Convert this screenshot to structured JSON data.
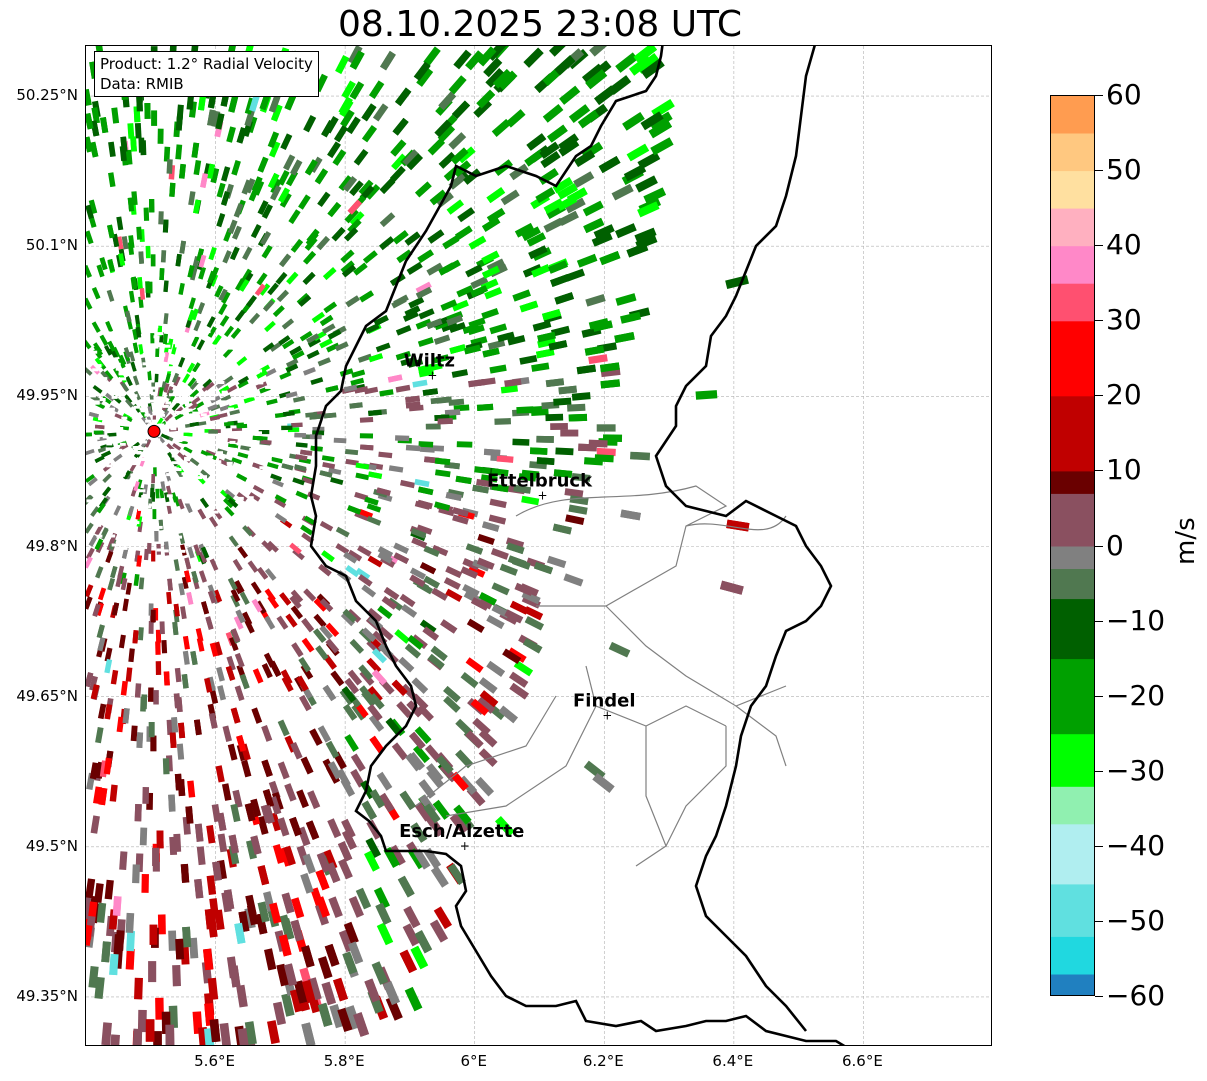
{
  "title": "08.10.2025 23:08 UTC",
  "info_box": {
    "product": "Product: 1.2° Radial Velocity",
    "data": "Data: RMIB"
  },
  "map": {
    "lon_range": [
      5.4,
      6.8
    ],
    "lat_range": [
      49.3,
      50.3
    ],
    "lat_ticks": [
      {
        "value": 50.25,
        "label": "50.25°N"
      },
      {
        "value": 50.1,
        "label": "50.1°N"
      },
      {
        "value": 49.95,
        "label": "49.95°N"
      },
      {
        "value": 49.8,
        "label": "49.8°N"
      },
      {
        "value": 49.65,
        "label": "49.65°N"
      },
      {
        "value": 49.5,
        "label": "49.5°N"
      },
      {
        "value": 49.35,
        "label": "49.35°N"
      }
    ],
    "lon_ticks": [
      {
        "value": 5.6,
        "label": "5.6°E"
      },
      {
        "value": 5.8,
        "label": "5.8°E"
      },
      {
        "value": 6.0,
        "label": "6°E"
      },
      {
        "value": 6.2,
        "label": "6.2°E"
      },
      {
        "value": 6.4,
        "label": "6.4°E"
      },
      {
        "value": 6.6,
        "label": "6.6°E"
      }
    ],
    "radar": {
      "lon": 5.505,
      "lat": 49.915
    },
    "cities": [
      {
        "name": "Wiltz",
        "lon": 5.93,
        "lat": 49.97
      },
      {
        "name": "Ettelbruck",
        "lon": 6.1,
        "lat": 49.85
      },
      {
        "name": "Findel",
        "lon": 6.2,
        "lat": 49.63
      },
      {
        "name": "Esch/Alzette",
        "lon": 5.98,
        "lat": 49.5
      }
    ]
  },
  "colorbar": {
    "unit": "m/s",
    "min": -60,
    "max": 60,
    "ticks": [
      {
        "value": 60,
        "label": "60"
      },
      {
        "value": 50,
        "label": "50"
      },
      {
        "value": 40,
        "label": "40"
      },
      {
        "value": 30,
        "label": "30"
      },
      {
        "value": 20,
        "label": "20"
      },
      {
        "value": 10,
        "label": "10"
      },
      {
        "value": 0,
        "label": "0"
      },
      {
        "value": -10,
        "label": "−10"
      },
      {
        "value": -20,
        "label": "−20"
      },
      {
        "value": -30,
        "label": "−30"
      },
      {
        "value": -40,
        "label": "−40"
      },
      {
        "value": -50,
        "label": "−50"
      },
      {
        "value": -60,
        "label": "−60"
      }
    ],
    "colors": {
      "c60": "#ff9c50",
      "c50": "#ffc880",
      "c45": "#ffe0a0",
      "c40": "#ffb0c0",
      "c35": "#ff88c8",
      "c30": "#ff5070",
      "c25": "#ff0000",
      "c15": "#c00000",
      "c10": "#6a0000",
      "c5": "#8a5060",
      "c0": "#808080",
      "cm5": "#507850",
      "cm10": "#006000",
      "cm20": "#00a000",
      "cm28": "#00ff00",
      "cm35": "#90f0b0",
      "cm40": "#b0eef0",
      "cm48": "#60e0e0",
      "cm55": "#20d8e0",
      "cm60": "#2080c0"
    }
  }
}
